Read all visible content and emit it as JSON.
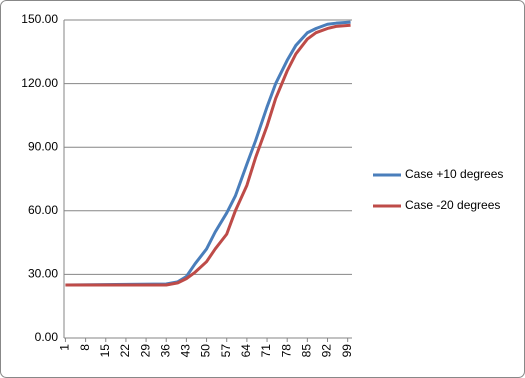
{
  "chart_data": {
    "type": "line",
    "x": [
      1,
      36,
      40,
      43,
      46,
      50,
      53,
      57,
      60,
      64,
      67,
      71,
      74,
      78,
      81,
      85,
      88,
      92,
      95,
      100
    ],
    "series": [
      {
        "name": "Case +10 degrees",
        "color": "#4a7ebb",
        "values": [
          25,
          25.5,
          26.5,
          29,
          35,
          42,
          50,
          59,
          67,
          82,
          93,
          109,
          120,
          131,
          138,
          144,
          146,
          148,
          148.5,
          149
        ]
      },
      {
        "name": "Case -20 degrees",
        "color": "#be4b48",
        "values": [
          25,
          25,
          26,
          28,
          31,
          36,
          42,
          49,
          60,
          72,
          85,
          100,
          113,
          126,
          134,
          141,
          144,
          146,
          147,
          147.5
        ]
      }
    ],
    "xlim": [
      0.5,
      100.5
    ],
    "xticks": [
      1,
      8,
      15,
      22,
      29,
      36,
      43,
      50,
      57,
      64,
      71,
      78,
      85,
      92,
      99
    ],
    "ylim": [
      0,
      150
    ],
    "yticks": [
      {
        "value": 0,
        "label": "0.00"
      },
      {
        "value": 30,
        "label": "30.00"
      },
      {
        "value": 60,
        "label": "60.00"
      },
      {
        "value": 90,
        "label": "90.00"
      },
      {
        "value": 120,
        "label": "120.00"
      },
      {
        "value": 150,
        "label": "150.00"
      }
    ],
    "grid": true,
    "legend": "right"
  }
}
